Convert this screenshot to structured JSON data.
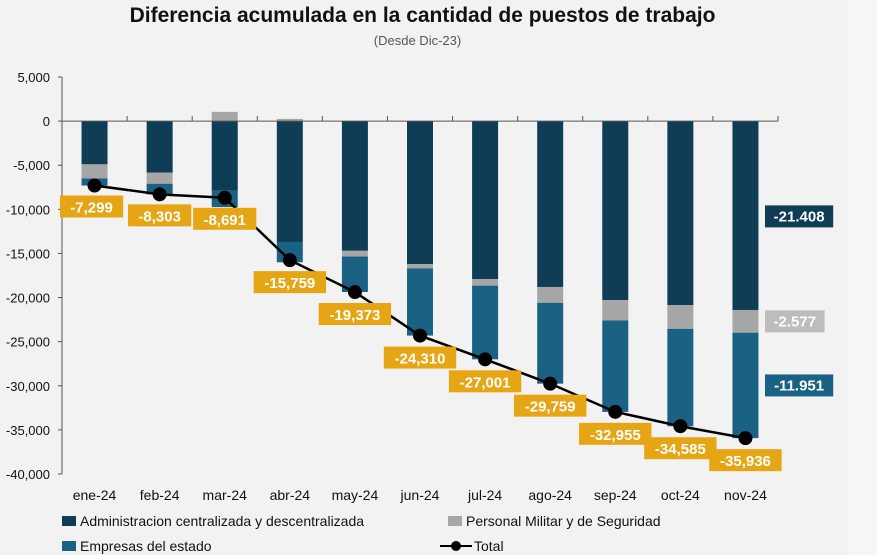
{
  "chart_data": {
    "type": "bar",
    "stacked": true,
    "title": "Diferencia acumulada en la cantidad de puestos de trabajo",
    "subtitle": "(Desde Dic-23)",
    "categories": [
      "ene-24",
      "feb-24",
      "mar-24",
      "abr-24",
      "may-24",
      "jun-24",
      "jul-24",
      "ago-24",
      "sep-24",
      "oct-24",
      "nov-24"
    ],
    "ylim": [
      -40000,
      5000
    ],
    "yticks": [
      5000,
      0,
      -5000,
      -10000,
      -15000,
      -20000,
      -25000,
      -30000,
      -35000,
      -40000
    ],
    "ytick_labels": [
      "5,000",
      "0",
      "-5,000",
      "-10,000",
      "-15,000",
      "-20,000",
      "-25,000",
      "-30,000",
      "-35,000",
      "-40,000"
    ],
    "grid": false,
    "legend_placement": "bottom",
    "series": [
      {
        "name": "Administracion centralizada y descentralizada",
        "type": "bar",
        "color": "#0f3d56",
        "values": [
          -4900,
          -5850,
          -7900,
          -13700,
          -14700,
          -16200,
          -17900,
          -18800,
          -20300,
          -20850,
          -21408
        ]
      },
      {
        "name": "Personal Militar y de Seguridad",
        "type": "bar",
        "color": "#a6a6a6",
        "values": [
          -1600,
          -1250,
          1050,
          250,
          -650,
          -500,
          -750,
          -1800,
          -2300,
          -2700,
          -2577
        ]
      },
      {
        "name": "Empresas del estado",
        "type": "bar",
        "color": "#1a6283",
        "values": [
          -800,
          -1200,
          -1840,
          -2300,
          -4020,
          -7610,
          -8350,
          -9160,
          -10360,
          -11040,
          -11951
        ]
      },
      {
        "name": "Total",
        "type": "line",
        "color": "#000000",
        "values": [
          -7299,
          -8303,
          -8691,
          -15759,
          -19373,
          -24310,
          -27001,
          -29759,
          -32955,
          -34585,
          -35936
        ],
        "labels": [
          "-7,299",
          "-8,303",
          "-8,691",
          "-15,759",
          "-19,373",
          "-24,310",
          "-27,001",
          "-29,759",
          "-32,955",
          "-34,585",
          "-35,936"
        ],
        "label_color": "#e6a514"
      }
    ],
    "end_labels": [
      {
        "text": "-21.408",
        "series": 0,
        "color": "#0f3d56"
      },
      {
        "text": "-2.577",
        "series": 1,
        "color": "#bdbdbd"
      },
      {
        "text": "-11.951",
        "series": 2,
        "color": "#1a6283"
      }
    ]
  }
}
